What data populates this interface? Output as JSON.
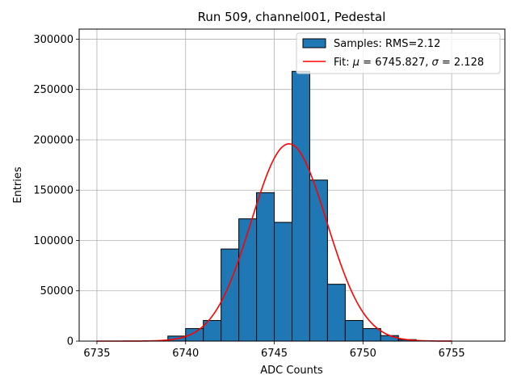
{
  "chart_data": {
    "type": "bar",
    "title": "Run 509, channel001, Pedestal",
    "xlabel": "ADC Counts",
    "ylabel": "Entries",
    "xlim": [
      6734,
      6758
    ],
    "ylim": [
      0,
      310000
    ],
    "xticks": [
      6735,
      6740,
      6745,
      6750,
      6755
    ],
    "yticks": [
      0,
      50000,
      100000,
      150000,
      200000,
      250000,
      300000
    ],
    "grid": true,
    "histogram": {
      "name": "Samples: RMS=2.12",
      "bin_width": 1,
      "bin_edges_start": [
        6739,
        6740,
        6741,
        6742,
        6743,
        6744,
        6745,
        6746,
        6747,
        6748,
        6749,
        6750,
        6751,
        6752
      ],
      "counts": [
        5000,
        12500,
        20500,
        91500,
        121500,
        147500,
        118000,
        268000,
        160000,
        56500,
        20500,
        12500,
        5500,
        1500
      ],
      "color": "#1f77b4",
      "edgecolor": "#000000"
    },
    "fit": {
      "name": "Fit: μ = 6745.827, σ = 2.128",
      "mu": 6745.827,
      "sigma": 2.128,
      "amplitude": 196000,
      "x_range": [
        6735,
        6755
      ],
      "color": "#ff0000"
    },
    "legend": {
      "location": "top-right",
      "entries": [
        {
          "kind": "patch",
          "label": "Samples: RMS=2.12"
        },
        {
          "kind": "line",
          "label_prefix": "Fit: ",
          "mu_symbol": "μ",
          "mu_text": " = 6745.827, ",
          "sigma_symbol": "σ",
          "sigma_text": " = 2.128"
        }
      ]
    }
  }
}
